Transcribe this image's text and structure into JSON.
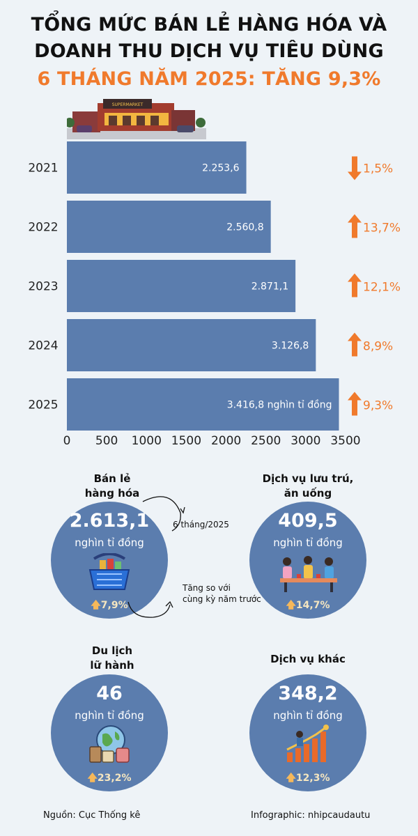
{
  "title": {
    "line1": "TỔNG MỨC BÁN LẺ HÀNG HÓA VÀ",
    "line2": "DOANH THU DỊCH VỤ TIÊU DÙNG",
    "line3": "6 THÁNG NĂM 2025: TĂNG 9,3%"
  },
  "illustration": {
    "sign_text": "SUPERMARKET"
  },
  "chart_data": {
    "type": "bar",
    "orientation": "horizontal",
    "categories": [
      "2021",
      "2022",
      "2023",
      "2024",
      "2025"
    ],
    "values": [
      2253.6,
      2560.8,
      2871.1,
      3126.8,
      3416.8
    ],
    "value_labels": [
      "2.253,6",
      "2.560,8",
      "2.871,1",
      "3.126,8",
      "3.416,8 nghìn tỉ đồng"
    ],
    "growth": [
      {
        "direction": "down",
        "label": "1,5%"
      },
      {
        "direction": "up",
        "label": "13,7%"
      },
      {
        "direction": "up",
        "label": "12,1%"
      },
      {
        "direction": "up",
        "label": "8,9%"
      },
      {
        "direction": "up",
        "label": "9,3%"
      }
    ],
    "xlim": [
      0,
      3500
    ],
    "xticks": [
      "0",
      "500",
      "1000",
      "1500",
      "2000",
      "2500",
      "3000",
      "3500"
    ],
    "bar_color": "#5b7dae",
    "accent_color": "#f07a2c",
    "grid": false
  },
  "sectors": [
    {
      "caption_lines": [
        "Bán lẻ",
        "hàng hóa"
      ],
      "value": "2.613,1",
      "unit": "nghìn tỉ đồng",
      "growth": "7,9%",
      "icon": "shopping-basket-icon"
    },
    {
      "caption_lines": [
        "Dịch vụ lưu trú,",
        "ăn uống"
      ],
      "value": "409,5",
      "unit": "nghìn tỉ đồng",
      "growth": "14,7%",
      "icon": "dining-people-icon"
    },
    {
      "caption_lines": [
        "Du lịch",
        "lữ hành"
      ],
      "value": "46",
      "unit": "nghìn tỉ đồng",
      "growth": "23,2%",
      "icon": "travel-globe-luggage-icon"
    },
    {
      "caption_lines": [
        "Dịch vụ khác"
      ],
      "value": "348,2",
      "unit": "nghìn tỉ đồng",
      "growth": "12,3%",
      "icon": "growth-chart-icon"
    }
  ],
  "notes": {
    "period": "6 tháng/2025",
    "comparison_line1": "Tăng so với",
    "comparison_line2": "cùng kỳ năm trước"
  },
  "footer": {
    "source": "Nguồn: Cục Thống kê",
    "credit": "Infographic: nhipcaudautu"
  }
}
